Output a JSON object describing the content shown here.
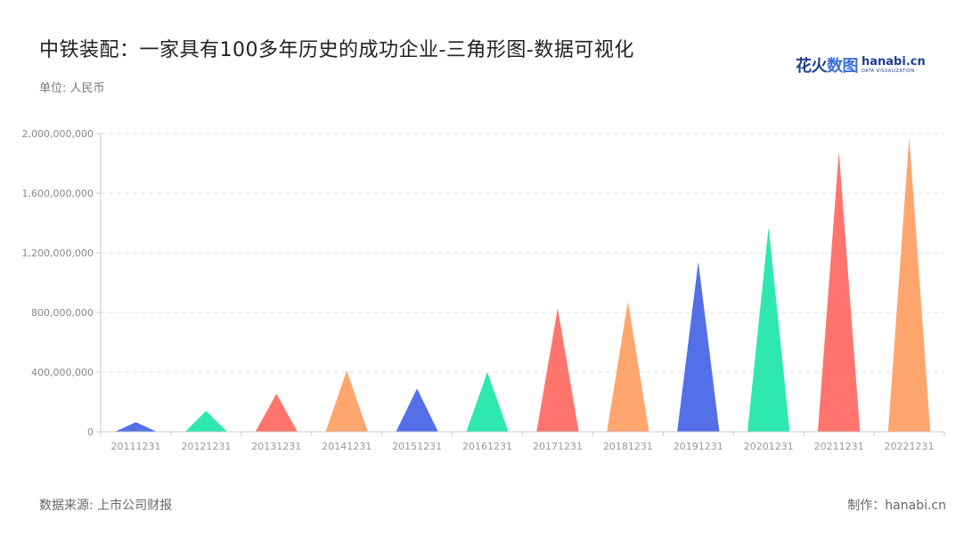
{
  "header": {
    "title": "中铁装配：一家具有100多年历史的成功企业-三角形图-数据可视化",
    "unit": "单位: 人民币"
  },
  "logo": {
    "cn_text_a": "花火",
    "cn_text_b": "数图",
    "en_text": "hanabi.cn",
    "en_sub": "DATA VISUALIZATION"
  },
  "footer": {
    "source": "数据来源: 上市公司财报",
    "credit": "制作：hanabi.cn"
  },
  "chart_data": {
    "type": "bar",
    "shape": "triangle",
    "categories": [
      "20111231",
      "20121231",
      "20131231",
      "20141231",
      "20151231",
      "20161231",
      "20171231",
      "20181231",
      "20191231",
      "20201231",
      "20211231",
      "20221231"
    ],
    "values": [
      65000000,
      140000000,
      255000000,
      410000000,
      290000000,
      400000000,
      830000000,
      875000000,
      1140000000,
      1375000000,
      1880000000,
      1975000000
    ],
    "ylim": [
      0,
      2000000000
    ],
    "yticks": [
      0,
      400000000,
      800000000,
      1200000000,
      1600000000,
      2000000000
    ],
    "ytick_labels": [
      "0",
      "400,000,000",
      "800,000,000",
      "1,200,000,000",
      "1,600,000,000",
      "2,000,000,000"
    ],
    "colors": [
      "#5470e8",
      "#2ee8b0",
      "#ff756e",
      "#ffa56e"
    ],
    "grid": true,
    "gridline_color": "#e2e2e2"
  }
}
